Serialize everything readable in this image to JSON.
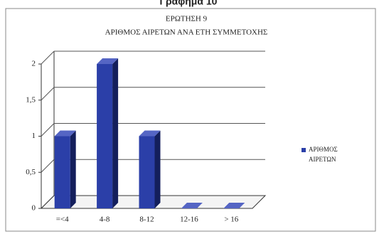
{
  "chart_data": {
    "type": "bar",
    "heading": "Γράφημα 10",
    "title": "ΕΡΩΤΗΣΗ 9",
    "subtitle": "ΑΡΙΘΜΟΣ ΑΙΡΕΤΩΝ ΑΝΑ ΕΤΗ ΣΥΜΜΕΤΟΧΗΣ",
    "categories": [
      "=<4",
      "4-8",
      "8-12",
      "12-16",
      "> 16"
    ],
    "series": [
      {
        "name": "ΑΡΙΘΜΟΣ ΑΙΡΕΤΩΝ",
        "color": "#2b3fa8",
        "values": [
          1,
          2,
          1,
          0,
          0
        ]
      }
    ],
    "ylim": [
      0,
      2
    ],
    "yticks": [
      0,
      {
        "value": 0.5,
        "label": "0,5"
      },
      1,
      {
        "value": 1.5,
        "label": "1,5"
      },
      2
    ],
    "grid": true,
    "legend": "right"
  }
}
